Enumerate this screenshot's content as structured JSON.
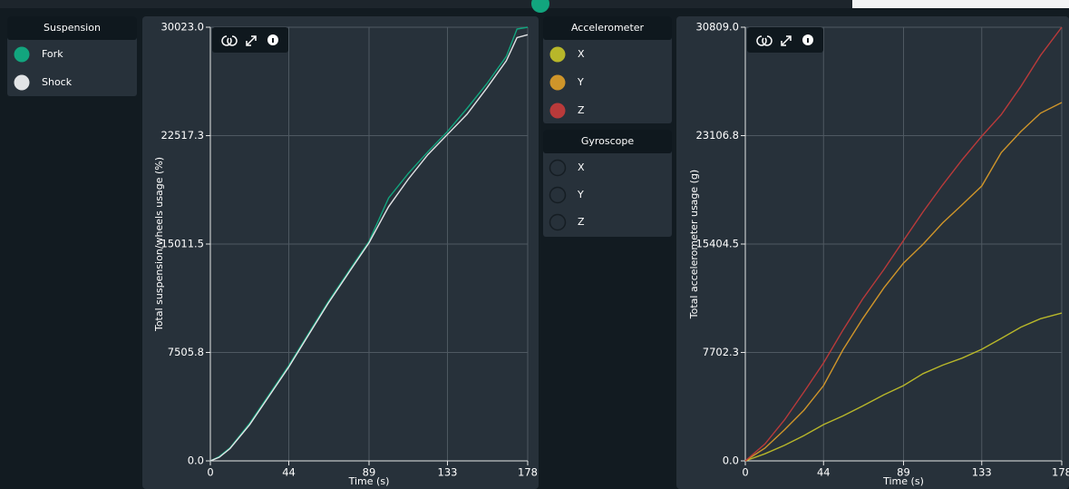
{
  "chart_data": [
    {
      "type": "line",
      "legend_title": "Suspension",
      "xlabel": "Time (s)",
      "ylabel": "Total suspension/wheels usage (%)",
      "x": [
        0,
        5,
        11,
        22,
        33,
        44,
        55,
        66,
        78,
        89,
        100,
        111,
        122,
        133,
        144,
        155,
        166,
        172,
        178
      ],
      "series": [
        {
          "name": "Fork",
          "color": "#12a57e",
          "values": [
            0,
            300,
            900,
            2600,
            4600,
            6600,
            8800,
            11000,
            13200,
            15200,
            18200,
            19900,
            21400,
            22800,
            24400,
            26100,
            28000,
            29900,
            30023
          ]
        },
        {
          "name": "Shock",
          "color": "#e2e4e6",
          "values": [
            0,
            250,
            850,
            2500,
            4500,
            6500,
            8700,
            10900,
            13100,
            15100,
            17600,
            19500,
            21200,
            22600,
            24000,
            25800,
            27700,
            29300,
            29500
          ]
        }
      ],
      "xlim": [
        0,
        178
      ],
      "xticks": [
        0,
        44,
        89,
        133,
        178
      ],
      "ylim": [
        0,
        30023
      ],
      "yticks": [
        {
          "value": 0,
          "label": "0.0"
        },
        7505.8,
        15011.5,
        22517.3,
        {
          "value": 30023,
          "label": "30023.0"
        }
      ],
      "grid": true
    },
    {
      "type": "line",
      "legend_title": "Accelerometer",
      "xlabel": "Time (s)",
      "ylabel": "Total accelerometer usage (g)",
      "x": [
        0,
        11,
        22,
        33,
        44,
        55,
        66,
        78,
        89,
        100,
        111,
        122,
        133,
        144,
        155,
        166,
        178
      ],
      "series": [
        {
          "name": "X",
          "color": "#b8b72a",
          "values": [
            0,
            500,
            1100,
            1800,
            2580,
            3200,
            3900,
            4700,
            5350,
            6200,
            6800,
            7300,
            7930,
            8700,
            9500,
            10100,
            10500
          ]
        },
        {
          "name": "Y",
          "color": "#cf952a",
          "values": [
            0,
            900,
            2200,
            3600,
            5350,
            7900,
            10100,
            12300,
            14050,
            15400,
            16900,
            18200,
            19530,
            21900,
            23400,
            24700,
            25460
          ]
        },
        {
          "name": "Z",
          "color": "#b93a3a",
          "values": [
            0,
            1200,
            2900,
            4900,
            6960,
            9300,
            11500,
            13600,
            15660,
            17700,
            19600,
            21400,
            23070,
            24600,
            26600,
            28800,
            30809
          ]
        }
      ],
      "xlim": [
        0,
        178
      ],
      "xticks": [
        0,
        44,
        89,
        133,
        178
      ],
      "ylim": [
        0,
        30809
      ],
      "yticks": [
        {
          "value": 0,
          "label": "0.0"
        },
        7702.3,
        15404.5,
        23106.8,
        {
          "value": 30809,
          "label": "30809.0"
        }
      ],
      "grid": true
    }
  ],
  "gyroscope_legend": {
    "title": "Gyroscope",
    "items": [
      "X",
      "Y",
      "Z"
    ]
  }
}
